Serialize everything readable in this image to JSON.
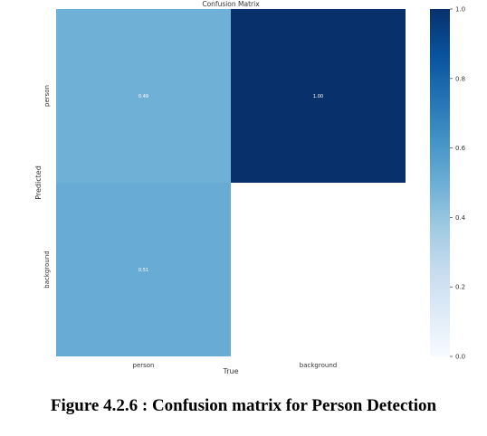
{
  "chart_data": {
    "type": "heatmap",
    "title": "Confusion Matrix",
    "xlabel": "True",
    "ylabel": "Predicted",
    "x_categories": [
      "person",
      "background"
    ],
    "y_categories": [
      "person",
      "background"
    ],
    "cells": [
      {
        "row": "person",
        "col": "person",
        "value": 0.49,
        "label": "0.49"
      },
      {
        "row": "person",
        "col": "background",
        "value": 1.0,
        "label": "1.00"
      },
      {
        "row": "background",
        "col": "person",
        "value": 0.51,
        "label": "0.51"
      },
      {
        "row": "background",
        "col": "background",
        "value": null,
        "label": ""
      }
    ],
    "colorscale": {
      "name": "Blues",
      "range": [
        0.0,
        1.0
      ],
      "ticks": [
        0.0,
        0.2,
        0.4,
        0.6,
        0.8,
        1.0
      ],
      "tick_labels": [
        "0.0",
        "0.2",
        "0.4",
        "0.6",
        "0.8",
        "1.0"
      ]
    },
    "colors": {
      "low": "#f7fbff",
      "high": "#08306b"
    }
  },
  "caption": "Figure 4.2.6 : Confusion matrix for Person Detection"
}
